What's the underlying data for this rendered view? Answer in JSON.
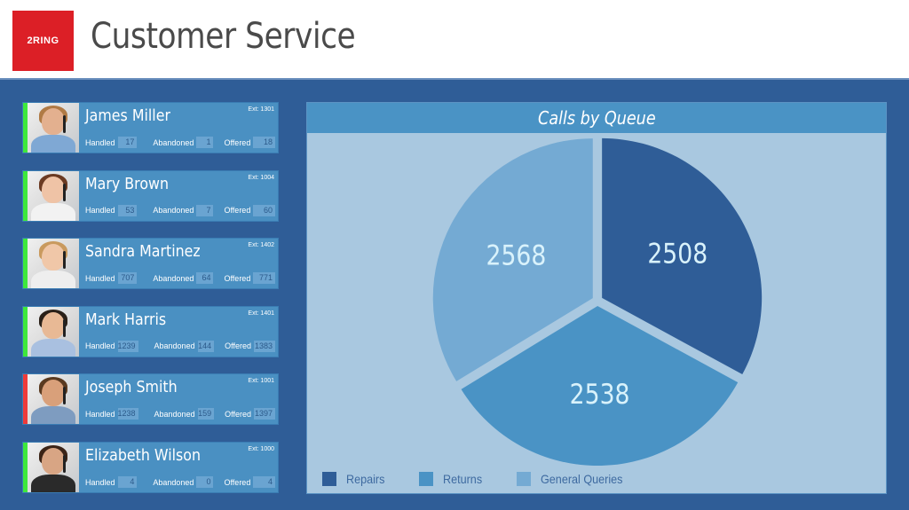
{
  "header": {
    "logo_text": "2RING",
    "title": "Customer Service"
  },
  "labels": {
    "handled": "Handled",
    "abandoned": "Abandoned",
    "offered": "Offered"
  },
  "agents": [
    {
      "name": "James Miller",
      "ext": "Ext: 1301",
      "handled": "17",
      "abandoned": "1",
      "offered": "18",
      "status": "available",
      "status_color": "#3ee83c",
      "skin": "#e3b08f",
      "hair": "#b07a45",
      "shirt": "#7fa8d4"
    },
    {
      "name": "Mary Brown",
      "ext": "Ext: 1004",
      "handled": "53",
      "abandoned": "7",
      "offered": "60",
      "status": "available",
      "status_color": "#3ee83c",
      "skin": "#efc3a6",
      "hair": "#6b3a22",
      "shirt": "#f2f2f2"
    },
    {
      "name": "Sandra Martinez",
      "ext": "Ext: 1402",
      "handled": "707",
      "abandoned": "64",
      "offered": "771",
      "status": "available",
      "status_color": "#3ee83c",
      "skin": "#f0c7a8",
      "hair": "#c99a5e",
      "shirt": "#eeeeee"
    },
    {
      "name": "Mark Harris",
      "ext": "Ext: 1401",
      "handled": "1239",
      "abandoned": "144",
      "offered": "1383",
      "status": "available",
      "status_color": "#3ee83c",
      "skin": "#e8b995",
      "hair": "#2a2018",
      "shirt": "#a9c0e0"
    },
    {
      "name": "Joseph Smith",
      "ext": "Ext: 1001",
      "handled": "1238",
      "abandoned": "159",
      "offered": "1397",
      "status": "busy",
      "status_color": "#ee3a3a",
      "skin": "#d9a07a",
      "hair": "#5a3a20",
      "shirt": "#7e9cc0"
    },
    {
      "name": "Elizabeth Wilson",
      "ext": "Ext: 1000",
      "handled": "4",
      "abandoned": "0",
      "offered": "4",
      "status": "available",
      "status_color": "#3ee83c",
      "skin": "#d8a584",
      "hair": "#3b2417",
      "shirt": "#2a2a2a"
    }
  ],
  "chart": {
    "title": "Calls by Queue"
  },
  "colors": {
    "background": "#2f5d97",
    "card": "#4a90c2",
    "chart_bg": "#a9c8e0",
    "logo_red": "#dc1f26"
  },
  "chart_data": {
    "type": "pie",
    "title": "Calls by Queue",
    "categories": [
      "Repairs",
      "Returns",
      "General Queries"
    ],
    "values": [
      2508,
      2538,
      2568
    ],
    "colors": [
      "#2f5d97",
      "#4a93c5",
      "#74aad3"
    ],
    "label_color": "#d9f2fb",
    "legend_position": "bottom-left"
  }
}
